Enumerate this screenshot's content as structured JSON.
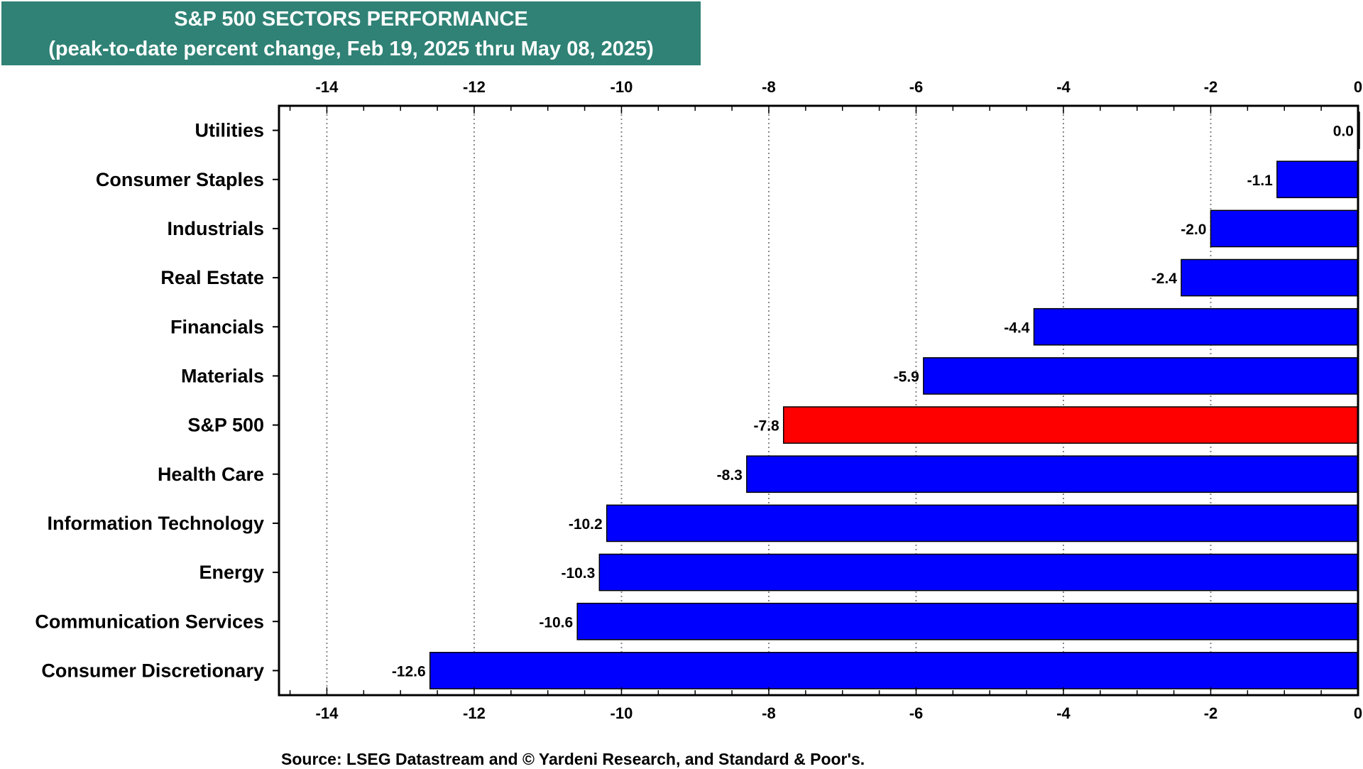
{
  "header": {
    "title": "S&P 500 SECTORS PERFORMANCE",
    "subtitle": "(peak-to-date percent change, Feb 19, 2025 thru May 08, 2025)"
  },
  "source": "Source: LSEG Datastream and © Yardeni Research, and Standard & Poor's.",
  "colors": {
    "title_bg": "#2f8275",
    "sector_bar": "#0000ff",
    "index_bar": "#ff0000"
  },
  "chart_data": {
    "type": "bar",
    "orientation": "horizontal",
    "categories": [
      "Utilities",
      "Consumer Staples",
      "Industrials",
      "Real Estate",
      "Financials",
      "Materials",
      "S&P 500",
      "Health Care",
      "Information Technology",
      "Energy",
      "Communication Services",
      "Consumer Discretionary"
    ],
    "values": [
      0.0,
      -1.1,
      -2.0,
      -2.4,
      -4.4,
      -5.9,
      -7.8,
      -8.3,
      -10.2,
      -10.3,
      -10.6,
      -12.6
    ],
    "value_labels": [
      "0.0",
      "-1.1",
      "-2.0",
      "-2.4",
      "-4.4",
      "-5.9",
      "-7.8",
      "-8.3",
      "-10.2",
      "-10.3",
      "-10.6",
      "-12.6"
    ],
    "highlight": "S&P 500",
    "xlim": [
      -14.65,
      0
    ],
    "xticks": [
      -14,
      -12,
      -10,
      -8,
      -6,
      -4,
      -2,
      0
    ],
    "xtick_labels": [
      "-14",
      "-12",
      "-10",
      "-8",
      "-6",
      "-4",
      "-2",
      "0"
    ],
    "grid": "vertical dotted",
    "axis_labels_position": "top and bottom"
  }
}
